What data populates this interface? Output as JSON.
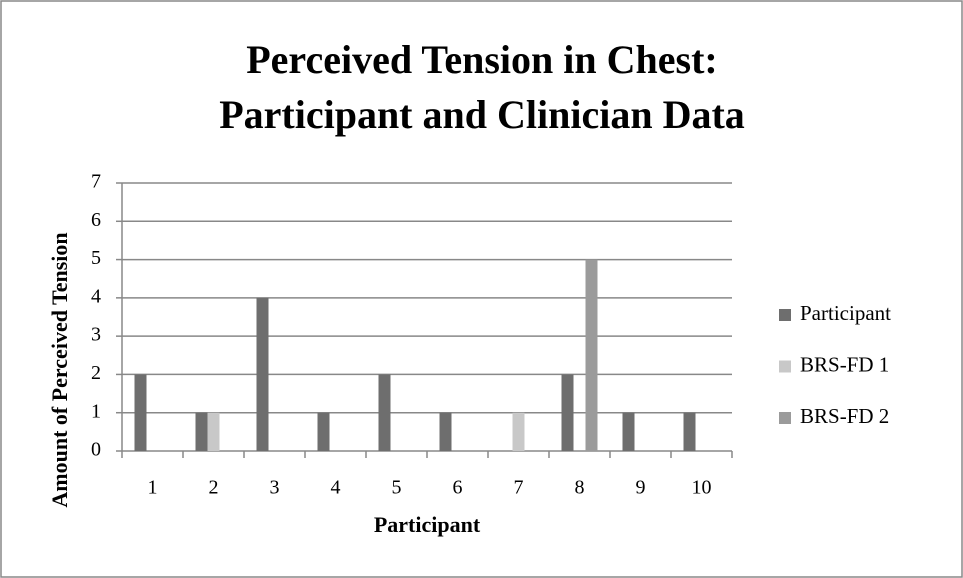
{
  "chart_data": {
    "type": "bar",
    "title": [
      "Perceived Tension in Chest:",
      "Participant and Clinician Data"
    ],
    "x_label": "Participant",
    "y_label": "Amount of Perceived Tension",
    "categories": [
      "1",
      "2",
      "3",
      "4",
      "5",
      "6",
      "7",
      "8",
      "9",
      "10"
    ],
    "series": [
      {
        "name": "Participant",
        "color": "#6e6e6e",
        "values": [
          2,
          1,
          4,
          1,
          2,
          1,
          0,
          2,
          1,
          1
        ]
      },
      {
        "name": "BRS-FD 1",
        "color": "#c8c8c8",
        "values": [
          0,
          1,
          0,
          0,
          0,
          0,
          1,
          0,
          0,
          0
        ]
      },
      {
        "name": "BRS-FD 2",
        "color": "#9b9b9b",
        "values": [
          0,
          0,
          0,
          0,
          0,
          0,
          0,
          5,
          0,
          0
        ]
      }
    ],
    "ylim": [
      0,
      7
    ],
    "yticks": [
      0,
      1,
      2,
      3,
      4,
      5,
      6,
      7
    ],
    "grid": true,
    "legend": "right"
  }
}
